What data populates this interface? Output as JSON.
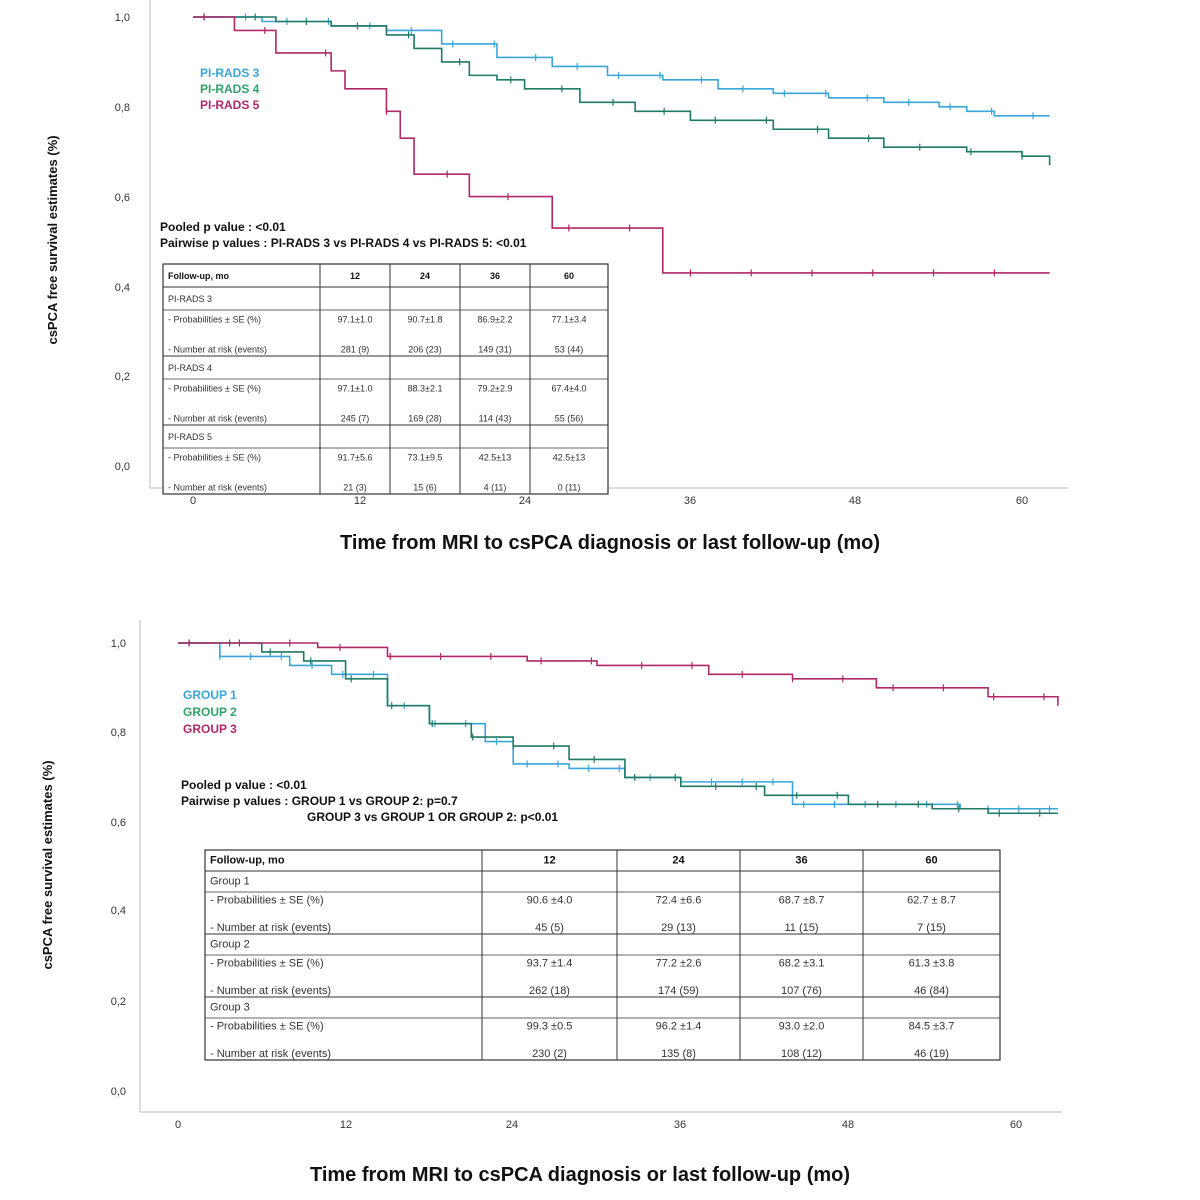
{
  "chart_data": [
    {
      "type": "line",
      "subtype": "kaplan-meier",
      "ylabel": "csPCA free survival estimates (%)",
      "xlabel": "Time from MRI to csPCA diagnosis or last follow-up (mo)",
      "x_ticks": [
        "0",
        "12",
        "24",
        "36",
        "48",
        "60"
      ],
      "y_ticks": [
        "0,0",
        "0,2",
        "0,4",
        "0,6",
        "0,8",
        "1,0"
      ],
      "xlim": [
        0,
        62
      ],
      "ylim": [
        0,
        1
      ],
      "legend": [
        {
          "name": "PI-RADS 3",
          "color": "#3aa6d8"
        },
        {
          "name": "PI-RADS 4",
          "color": "#2fa36b"
        },
        {
          "name": "PI-RADS 5",
          "color": "#b0286a"
        }
      ],
      "pvalues": [
        "Pooled p value : <0.01",
        "Pairwise p values : PI-RADS 3 vs PI-RADS 4 vs PI-RADS 5: <0.01"
      ],
      "series": [
        {
          "name": "PI-RADS 3",
          "color": "#3aa6d8",
          "x": [
            0,
            5,
            10,
            14,
            18,
            22,
            26,
            30,
            34,
            38,
            42,
            46,
            50,
            54,
            56,
            58,
            62
          ],
          "y": [
            1.0,
            0.99,
            0.98,
            0.97,
            0.94,
            0.91,
            0.89,
            0.87,
            0.86,
            0.84,
            0.83,
            0.82,
            0.81,
            0.8,
            0.79,
            0.78,
            0.78
          ]
        },
        {
          "name": "PI-RADS 4",
          "color": "#1f7a66",
          "x": [
            0,
            6,
            10,
            14,
            16,
            18,
            20,
            22,
            24,
            28,
            32,
            36,
            42,
            46,
            50,
            56,
            60,
            62
          ],
          "y": [
            1.0,
            0.99,
            0.98,
            0.96,
            0.93,
            0.9,
            0.87,
            0.86,
            0.84,
            0.81,
            0.79,
            0.77,
            0.75,
            0.73,
            0.71,
            0.7,
            0.69,
            0.67
          ]
        },
        {
          "name": "PI-RADS 5",
          "color": "#b0286a",
          "x": [
            0,
            3,
            6,
            10,
            11,
            14,
            15,
            16,
            20,
            26,
            34,
            62
          ],
          "y": [
            1.0,
            0.97,
            0.92,
            0.88,
            0.84,
            0.79,
            0.73,
            0.65,
            0.6,
            0.53,
            0.43,
            0.43
          ]
        }
      ],
      "table": {
        "header": [
          "Follow-up, mo",
          "12",
          "24",
          "36",
          "60"
        ],
        "rows": [
          [
            "PI-RADS 3",
            "",
            "",
            "",
            ""
          ],
          [
            "- Probabilities ± SE (%)",
            "97.1±1.0",
            "90.7±1.8",
            "86.9±2.2",
            "77.1±3.4"
          ],
          [
            "- Number at risk (events)",
            "281 (9)",
            "206 (23)",
            "149 (31)",
            "53 (44)"
          ],
          [
            "PI-RADS 4",
            "",
            "",
            "",
            ""
          ],
          [
            "- Probabilities ± SE (%)",
            "97.1±1.0",
            "88.3±2.1",
            "79.2±2.9",
            "67.4±4.0"
          ],
          [
            "- Number at risk (events)",
            "245 (7)",
            "169 (28)",
            "114 (43)",
            "55 (56)"
          ],
          [
            "PI-RADS 5",
            "",
            "",
            "",
            ""
          ],
          [
            "- Probabilities ± SE (%)",
            "91.7±5.6",
            "73.1±9.5",
            "42.5±13",
            "42.5±13"
          ],
          [
            "- Number at risk (events)",
            "21 (3)",
            "15 (6)",
            "4 (11)",
            "0 (11)"
          ]
        ]
      }
    },
    {
      "type": "line",
      "subtype": "kaplan-meier",
      "ylabel": "csPCA free survival estimates (%)",
      "xlabel": "Time from MRI to csPCA diagnosis or last follow-up (mo)",
      "x_ticks": [
        "0",
        "12",
        "24",
        "36",
        "48",
        "60"
      ],
      "y_ticks": [
        "0,0",
        "0,2",
        "0,4",
        "0,6",
        "0,8",
        "1,0"
      ],
      "xlim": [
        0,
        63
      ],
      "ylim": [
        0,
        1
      ],
      "legend": [
        {
          "name": "GROUP 1",
          "color": "#3aa6d8"
        },
        {
          "name": "GROUP 2",
          "color": "#2fa36b"
        },
        {
          "name": "GROUP 3",
          "color": "#b0286a"
        }
      ],
      "pvalues": [
        "Pooled p value : <0.01",
        "Pairwise p values : GROUP 1 vs GROUP 2: p=0.7",
        "GROUP 3 vs GROUP 1 OR GROUP 2: p<0.01"
      ],
      "series": [
        {
          "name": "GROUP 1",
          "color": "#3aa6d8",
          "x": [
            0,
            3,
            8,
            11,
            15,
            18,
            22,
            24,
            28,
            32,
            36,
            44,
            48,
            56,
            63
          ],
          "y": [
            1.0,
            0.97,
            0.95,
            0.93,
            0.86,
            0.82,
            0.78,
            0.73,
            0.72,
            0.7,
            0.69,
            0.64,
            0.64,
            0.63,
            0.63
          ]
        },
        {
          "name": "GROUP 2",
          "color": "#1f7a66",
          "x": [
            0,
            6,
            9,
            12,
            15,
            18,
            21,
            24,
            28,
            32,
            36,
            42,
            48,
            54,
            58,
            63
          ],
          "y": [
            1.0,
            0.98,
            0.96,
            0.92,
            0.86,
            0.82,
            0.79,
            0.77,
            0.74,
            0.7,
            0.68,
            0.66,
            0.64,
            0.63,
            0.62,
            0.62
          ]
        },
        {
          "name": "GROUP 3",
          "color": "#b0286a",
          "x": [
            0,
            10,
            15,
            25,
            30,
            38,
            44,
            50,
            58,
            63
          ],
          "y": [
            1.0,
            0.99,
            0.97,
            0.96,
            0.95,
            0.93,
            0.92,
            0.9,
            0.88,
            0.86
          ]
        }
      ],
      "table": {
        "header": [
          "Follow-up, mo",
          "12",
          "24",
          "36",
          "60"
        ],
        "rows": [
          [
            "Group 1",
            "",
            "",
            "",
            ""
          ],
          [
            "- Probabilities ± SE (%)",
            "90.6 ±4.0",
            "72.4 ±6.6",
            "68.7 ±8.7",
            "62.7 ± 8.7"
          ],
          [
            "- Number at risk (events)",
            "45 (5)",
            "29 (13)",
            "11 (15)",
            "7 (15)"
          ],
          [
            "Group 2",
            "",
            "",
            "",
            ""
          ],
          [
            "- Probabilities ± SE (%)",
            "93.7 ±1.4",
            "77.2 ±2.6",
            "68.2 ±3.1",
            "61.3 ±3.8"
          ],
          [
            "- Number at risk (events)",
            "262 (18)",
            "174 (59)",
            "107 (76)",
            "46 (84)"
          ],
          [
            "Group 3",
            "",
            "",
            "",
            ""
          ],
          [
            "- Probabilities ± SE (%)",
            "99.3 ±0.5",
            "96.2 ±1.4",
            "93.0 ±2.0",
            "84.5 ±3.7"
          ],
          [
            "- Number at risk (events)",
            "230 (2)",
            "135 (8)",
            "108 (12)",
            "46 (19)"
          ]
        ]
      }
    }
  ]
}
